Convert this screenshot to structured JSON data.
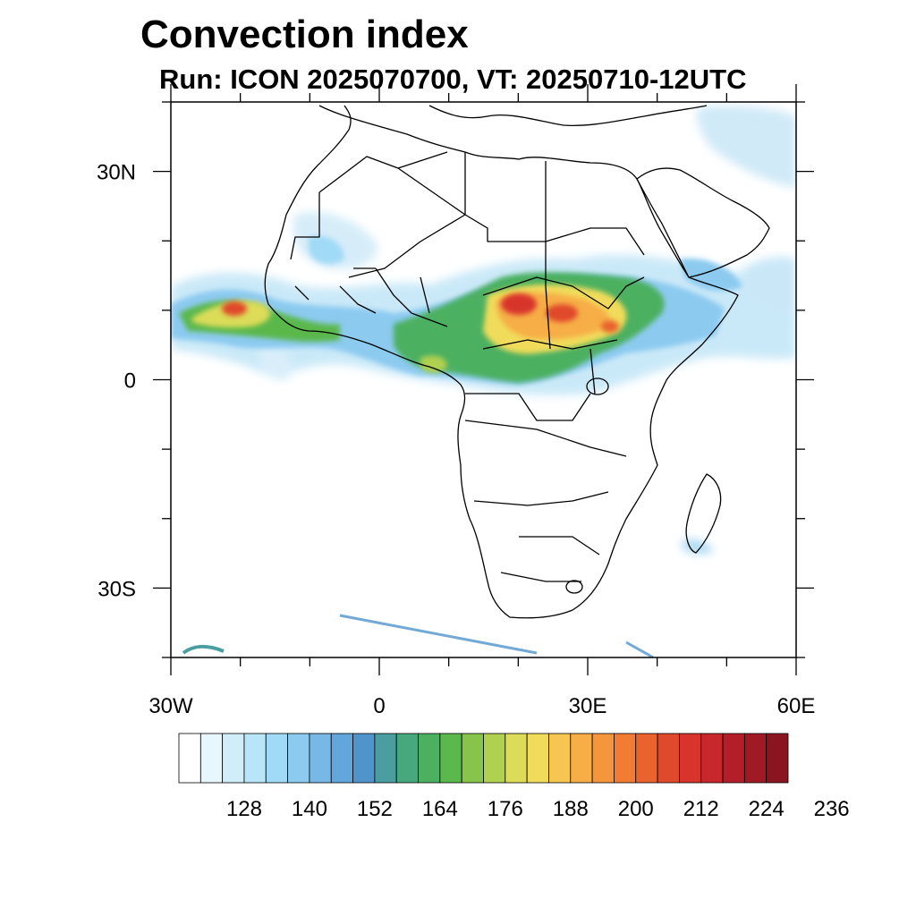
{
  "title": "Convection index",
  "subtitle": "Run: ICON 2025070700,  VT: 20250710-12UTC",
  "map": {
    "extent": {
      "lon": [
        -30,
        60
      ],
      "lat": [
        -40,
        40
      ]
    },
    "lon_labels": [
      {
        "lon": -30,
        "text": "30W"
      },
      {
        "lon": 0,
        "text": "0"
      },
      {
        "lon": 30,
        "text": "30E"
      },
      {
        "lon": 60,
        "text": "60E"
      }
    ],
    "lat_labels": [
      {
        "lat": 30,
        "text": "30N"
      },
      {
        "lat": 0,
        "text": "0"
      },
      {
        "lat": -30,
        "text": "30S"
      }
    ]
  },
  "colorbar": {
    "colors": [
      "#ffffff",
      "#e8f6fd",
      "#d0eefa",
      "#b8e5f8",
      "#a0daf6",
      "#8ccaf0",
      "#78b8e6",
      "#62a6dc",
      "#5094cc",
      "#4a9ea0",
      "#46a87c",
      "#4cb060",
      "#5ab84c",
      "#86c44c",
      "#b0d050",
      "#dcdc58",
      "#f0dc5a",
      "#f6c650",
      "#f7ae46",
      "#f6963c",
      "#f27c34",
      "#ea622e",
      "#e04a2c",
      "#d8342c",
      "#c8282c",
      "#b41e28",
      "#a01a24",
      "#8a1420"
    ],
    "labels": [
      "128",
      "140",
      "152",
      "164",
      "176",
      "188",
      "200",
      "212",
      "224",
      "236"
    ]
  }
}
